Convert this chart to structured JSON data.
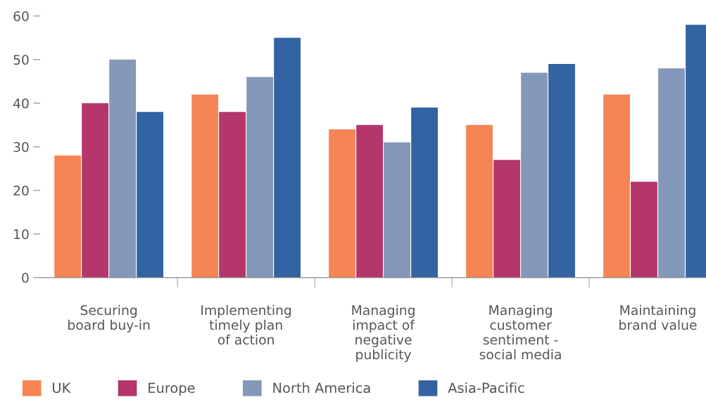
{
  "chart_data": {
    "type": "bar",
    "categories": [
      "Securing\nboard buy-in",
      "Implementing\ntimely plan\nof action",
      "Managing\nimpact of\nnegative\npublicity",
      "Managing\ncustomer\nsentiment -\nsocial media",
      "Maintaining\nbrand value"
    ],
    "series": [
      {
        "name": "UK",
        "color": "#f58554",
        "values": [
          28,
          42,
          34,
          35,
          42
        ]
      },
      {
        "name": "Europe",
        "color": "#b5366a",
        "values": [
          40,
          38,
          35,
          27,
          22
        ]
      },
      {
        "name": "North America",
        "color": "#8498b9",
        "values": [
          50,
          46,
          31,
          47,
          48
        ]
      },
      {
        "name": "Asia-Pacific",
        "color": "#3363a2",
        "values": [
          38,
          55,
          39,
          49,
          58
        ]
      }
    ],
    "ylim": [
      0,
      60
    ],
    "yticks": [
      0,
      10,
      20,
      30,
      40,
      50,
      60
    ],
    "grid": false,
    "legend": "bottom left"
  }
}
